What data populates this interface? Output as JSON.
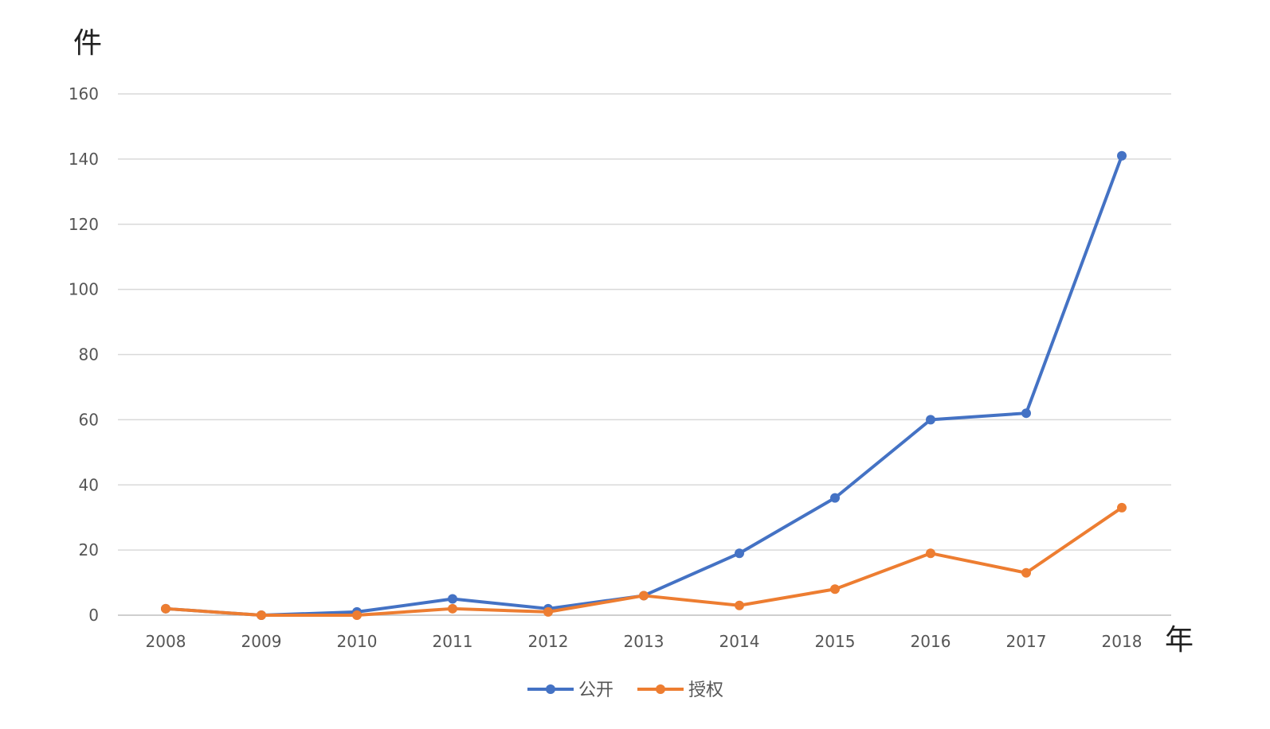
{
  "chart_data": {
    "type": "line",
    "title": "",
    "ylabel": "件",
    "xlabel": "年",
    "ylim": [
      0,
      160
    ],
    "yticks": [
      0,
      20,
      40,
      60,
      80,
      100,
      120,
      140,
      160
    ],
    "categories": [
      "2008",
      "2009",
      "2010",
      "2011",
      "2012",
      "2013",
      "2014",
      "2015",
      "2016",
      "2017",
      "2018"
    ],
    "grid": true,
    "legend_position": "bottom",
    "series": [
      {
        "name": "公开",
        "color": "#4472c4",
        "values": [
          2,
          0,
          1,
          5,
          2,
          6,
          19,
          36,
          60,
          62,
          141
        ]
      },
      {
        "name": "授权",
        "color": "#ed7d31",
        "values": [
          2,
          0,
          0,
          2,
          1,
          6,
          3,
          8,
          19,
          13,
          33
        ]
      }
    ]
  }
}
